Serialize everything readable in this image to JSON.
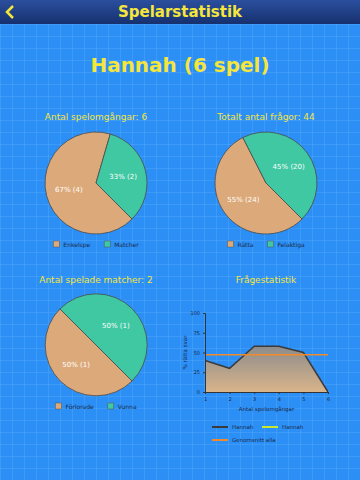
{
  "header": {
    "title": "Spelarstatistik",
    "subtitle": "Hannah (6 spel)"
  },
  "chart_data": [
    {
      "type": "pie",
      "title": "Antal spelomgångar: 6",
      "categories": [
        "Enkelspe",
        "Matcher"
      ],
      "values": [
        67,
        33
      ],
      "value_labels": [
        "67% (4)",
        "33% (2)"
      ],
      "colors": [
        "#dcaa7a",
        "#3fc8a2"
      ],
      "data_labels": true,
      "legend": "bottom"
    },
    {
      "type": "pie",
      "title": "Totalt antal frågor: 44",
      "categories": [
        "Rätta",
        "Felaktiga"
      ],
      "values": [
        55,
        45
      ],
      "value_labels": [
        "55% (24)",
        "45% (20)"
      ],
      "colors": [
        "#dcaa7a",
        "#3fc8a2"
      ],
      "data_labels": true,
      "legend": "bottom"
    },
    {
      "type": "pie",
      "title": "Antal spelade matcher: 2",
      "categories": [
        "Förlorade",
        "Vunna"
      ],
      "values": [
        50,
        50
      ],
      "value_labels": [
        "50% (1)",
        "50% (1)"
      ],
      "colors": [
        "#dcaa7a",
        "#3fc8a2"
      ],
      "data_labels": true,
      "legend": "bottom"
    },
    {
      "type": "line",
      "title": "Frågestatistik",
      "x": [
        1,
        2,
        3,
        4,
        5,
        6
      ],
      "xlim": [
        1,
        6
      ],
      "xticks": [
        1,
        2,
        3,
        4,
        5,
        6
      ],
      "ylim": [
        0,
        100
      ],
      "yticks": [
        0,
        25,
        50,
        75,
        100
      ],
      "x_label": "Antal spelomgångar",
      "y_label": "% rätta svar",
      "legend": "bottom",
      "series": [
        {
          "name": "Hannah",
          "color": "#3a3a3a",
          "type": "area",
          "values": [
            40,
            30,
            58,
            58,
            50,
            0
          ]
        },
        {
          "name": "Hannah",
          "color": "#c8e632",
          "values": [
            null,
            null,
            null,
            null,
            null,
            null
          ]
        },
        {
          "name": "Genomsnitt alla",
          "color": "#f08a2a",
          "values": [
            47,
            47,
            47,
            47,
            47,
            47
          ]
        }
      ]
    }
  ]
}
